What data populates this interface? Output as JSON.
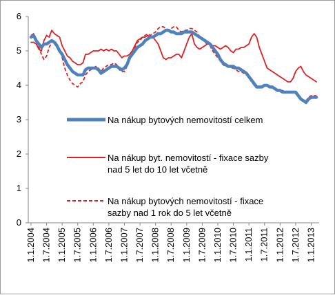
{
  "chart_data": {
    "type": "line",
    "title": "",
    "xlabel": "",
    "ylabel": "",
    "ylim": [
      0,
      6
    ],
    "y_ticks": [
      0,
      1,
      2,
      3,
      4,
      5,
      6
    ],
    "x_tick_labels": [
      "1.1.2004",
      "1.7.2004",
      "1.1.2005",
      "1.7.2005",
      "1.1.2006",
      "1.7.2006",
      "1.1.2007",
      "1.7.2007",
      "1.1.2008",
      "1.7.2008",
      "1.1.2009",
      "1.7.2009",
      "1.1.2010",
      "1.7.2010",
      "1.1.2011",
      "1.7.2011",
      "1.1.2012",
      "1.7.2012",
      "1.1.2013"
    ],
    "grid": false,
    "legend_position": "right",
    "x": [
      "2004-01",
      "2004-02",
      "2004-03",
      "2004-04",
      "2004-05",
      "2004-06",
      "2004-07",
      "2004-08",
      "2004-09",
      "2004-10",
      "2004-11",
      "2004-12",
      "2005-01",
      "2005-02",
      "2005-03",
      "2005-04",
      "2005-05",
      "2005-06",
      "2005-07",
      "2005-08",
      "2005-09",
      "2005-10",
      "2005-11",
      "2005-12",
      "2006-01",
      "2006-02",
      "2006-03",
      "2006-04",
      "2006-05",
      "2006-06",
      "2006-07",
      "2006-08",
      "2006-09",
      "2006-10",
      "2006-11",
      "2006-12",
      "2007-01",
      "2007-02",
      "2007-03",
      "2007-04",
      "2007-05",
      "2007-06",
      "2007-07",
      "2007-08",
      "2007-09",
      "2007-10",
      "2007-11",
      "2007-12",
      "2008-01",
      "2008-02",
      "2008-03",
      "2008-04",
      "2008-05",
      "2008-06",
      "2008-07",
      "2008-08",
      "2008-09",
      "2008-10",
      "2008-11",
      "2008-12",
      "2009-01",
      "2009-02",
      "2009-03",
      "2009-04",
      "2009-05",
      "2009-06",
      "2009-07",
      "2009-08",
      "2009-09",
      "2009-10",
      "2009-11",
      "2009-12",
      "2010-01",
      "2010-02",
      "2010-03",
      "2010-04",
      "2010-05",
      "2010-06",
      "2010-07",
      "2010-08",
      "2010-09",
      "2010-10",
      "2010-11",
      "2010-12",
      "2011-01",
      "2011-02",
      "2011-03",
      "2011-04",
      "2011-05",
      "2011-06",
      "2011-07",
      "2011-08",
      "2011-09",
      "2011-10",
      "2011-11",
      "2011-12",
      "2012-01",
      "2012-02",
      "2012-03",
      "2012-04",
      "2012-05",
      "2012-06",
      "2012-07",
      "2012-08",
      "2012-09",
      "2012-10",
      "2012-11",
      "2012-12",
      "2013-01",
      "2013-02",
      "2013-03"
    ],
    "series": [
      {
        "name": "Na nákup bytových nemovitostí  celkem",
        "color": "#4f81bd",
        "style": "thick",
        "values": [
          5.4,
          5.45,
          5.3,
          5.2,
          5.1,
          5.2,
          5.2,
          5.25,
          5.3,
          5.25,
          5.15,
          5.0,
          4.9,
          4.75,
          4.6,
          4.5,
          4.4,
          4.35,
          4.3,
          4.3,
          4.3,
          4.45,
          4.5,
          4.5,
          4.5,
          4.5,
          4.45,
          4.35,
          4.4,
          4.45,
          4.5,
          4.55,
          4.55,
          4.55,
          4.5,
          4.45,
          4.5,
          4.6,
          4.8,
          4.9,
          5.0,
          5.1,
          5.15,
          5.2,
          5.3,
          5.35,
          5.4,
          5.4,
          5.45,
          5.5,
          5.5,
          5.55,
          5.6,
          5.6,
          5.55,
          5.55,
          5.5,
          5.5,
          5.5,
          5.55,
          5.55,
          5.55,
          5.55,
          5.5,
          5.45,
          5.4,
          5.35,
          5.3,
          5.25,
          5.2,
          5.1,
          5.0,
          4.9,
          4.75,
          4.65,
          4.6,
          4.55,
          4.55,
          4.55,
          4.5,
          4.5,
          4.45,
          4.4,
          4.35,
          4.25,
          4.15,
          4.05,
          3.95,
          3.95,
          3.95,
          4.0,
          4.0,
          3.95,
          3.95,
          3.9,
          3.85,
          3.85,
          3.8,
          3.8,
          3.8,
          3.8,
          3.8,
          3.8,
          3.7,
          3.6,
          3.55,
          3.5,
          3.6,
          3.65,
          3.65,
          3.65
        ]
      },
      {
        "name": "Na nákup byt. nemovitostí - fixace sazby nad 5 let do 10 let včetně",
        "color": "#e02020",
        "style": "solid",
        "values": [
          5.25,
          5.25,
          5.2,
          5.05,
          5.0,
          5.3,
          5.45,
          5.4,
          5.6,
          5.5,
          5.45,
          5.4,
          5.15,
          5.0,
          4.85,
          4.8,
          4.7,
          4.65,
          4.6,
          4.6,
          4.65,
          4.9,
          4.9,
          4.95,
          5.0,
          5.0,
          5.0,
          5.05,
          5.0,
          5.05,
          5.0,
          5.05,
          5.0,
          5.0,
          4.9,
          4.8,
          4.85,
          4.85,
          4.9,
          5.0,
          5.15,
          5.3,
          5.35,
          5.4,
          5.4,
          5.45,
          5.4,
          5.4,
          5.3,
          5.2,
          5.0,
          4.8,
          4.75,
          4.8,
          4.8,
          4.85,
          4.9,
          4.9,
          4.8,
          5.0,
          5.2,
          5.4,
          5.5,
          5.2,
          5.1,
          5.05,
          5.1,
          5.15,
          5.2,
          5.2,
          5.15,
          5.15,
          5.1,
          5.05,
          5.1,
          5.15,
          5.1,
          5.0,
          4.95,
          5.05,
          5.05,
          5.1,
          5.1,
          5.15,
          5.2,
          5.4,
          5.5,
          5.4,
          5.1,
          4.9,
          4.7,
          4.5,
          4.45,
          4.4,
          4.35,
          4.3,
          4.25,
          4.2,
          4.15,
          4.1,
          4.1,
          4.2,
          4.4,
          4.5,
          4.55,
          4.4,
          4.3,
          4.25,
          4.2,
          4.15,
          4.1
        ]
      },
      {
        "name": "Na nákup bytových nemovitostí - fixace sazby nad 1 rok do 5 let včetně",
        "color": "#e02020",
        "style": "dashed",
        "values": [
          5.45,
          5.5,
          5.3,
          5.1,
          4.9,
          4.75,
          4.85,
          5.1,
          5.25,
          5.3,
          5.2,
          5.05,
          4.8,
          4.5,
          4.3,
          4.15,
          4.05,
          4.0,
          3.95,
          4.05,
          4.1,
          4.3,
          4.4,
          4.45,
          4.5,
          4.55,
          4.5,
          4.4,
          4.5,
          4.55,
          4.6,
          4.6,
          4.65,
          4.6,
          4.45,
          4.4,
          4.4,
          4.55,
          4.8,
          4.95,
          5.1,
          5.25,
          5.3,
          5.4,
          5.45,
          5.5,
          5.45,
          5.5,
          5.55,
          5.65,
          5.7,
          5.7,
          5.65,
          5.6,
          5.65,
          5.7,
          5.7,
          5.6,
          5.55,
          5.6,
          5.6,
          5.65,
          5.65,
          5.6,
          5.55,
          5.4,
          5.35,
          5.25,
          5.2,
          5.15,
          5.0,
          4.9,
          4.8,
          4.7,
          4.6,
          4.55,
          4.55,
          4.5,
          4.5,
          4.45,
          4.4,
          4.4,
          4.35,
          4.3,
          4.25,
          4.1,
          4.0,
          3.95,
          3.95,
          3.95,
          4.0,
          4.0,
          3.95,
          3.95,
          3.9,
          3.85,
          3.85,
          3.85,
          3.8,
          3.8,
          3.8,
          3.8,
          3.8,
          3.7,
          3.6,
          3.55,
          3.55,
          3.65,
          3.7,
          3.7,
          3.7
        ]
      }
    ]
  }
}
